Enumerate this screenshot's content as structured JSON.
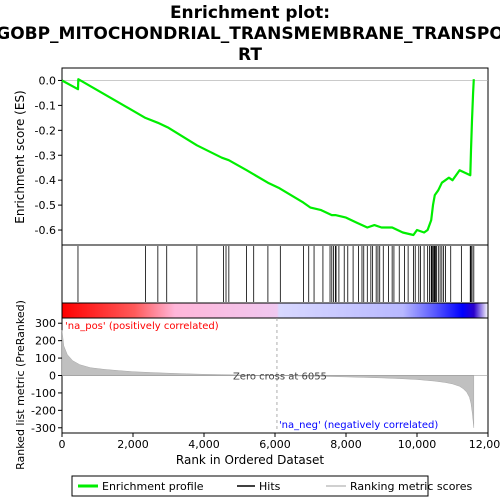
{
  "chart_data": {
    "type": "line",
    "title_line1": "Enrichment plot:",
    "title_line2": "GOBP_MITOCHONDRIAL_TRANSMEMBRANE_TRANSPO",
    "title_line3": "RT",
    "xlabel": "Rank in Ordered Dataset",
    "ylabel_top": "Enrichment score (ES)",
    "ylabel_bottom": "Ranked list metric (PreRanked)",
    "xlim": [
      0,
      12000
    ],
    "x_ticks": [
      0,
      2000,
      4000,
      6000,
      8000,
      10000,
      12000
    ],
    "x_tick_labels": [
      "0",
      "2,000",
      "4,000",
      "6,000",
      "8,000",
      "10,000",
      "12,000"
    ],
    "es_ylim": [
      -0.66,
      0.05
    ],
    "es_ticks": [
      0.0,
      -0.1,
      -0.2,
      -0.3,
      -0.4,
      -0.5,
      -0.6
    ],
    "es_tick_labels": [
      "0.0",
      "-0.1",
      "-0.2",
      "-0.3",
      "-0.4",
      "-0.5",
      "-0.6"
    ],
    "metric_ylim": [
      -330,
      330
    ],
    "metric_ticks": [
      300,
      200,
      100,
      0,
      -100,
      -200,
      -300
    ],
    "metric_tick_labels": [
      "300",
      "200",
      "100",
      "0",
      "-100",
      "-200",
      "-300"
    ],
    "enrichment_profile": {
      "name": "Enrichment profile",
      "color": "#00ee00",
      "x": [
        0,
        450,
        460,
        2350,
        2700,
        3000,
        3800,
        4500,
        4700,
        5200,
        5800,
        6100,
        6800,
        7000,
        7300,
        7600,
        7700,
        8000,
        8300,
        8600,
        8800,
        9000,
        9300,
        9600,
        9900,
        10000,
        10200,
        10300,
        10400,
        10450,
        10500,
        10600,
        10700,
        10800,
        10900,
        11000,
        11200,
        11500,
        11520,
        11550,
        11580,
        11600
      ],
      "y": [
        0.0,
        -0.035,
        0.005,
        -0.15,
        -0.17,
        -0.19,
        -0.26,
        -0.31,
        -0.32,
        -0.36,
        -0.41,
        -0.43,
        -0.49,
        -0.51,
        -0.52,
        -0.54,
        -0.54,
        -0.55,
        -0.57,
        -0.59,
        -0.58,
        -0.59,
        -0.59,
        -0.61,
        -0.62,
        -0.6,
        -0.61,
        -0.6,
        -0.56,
        -0.5,
        -0.46,
        -0.44,
        -0.41,
        -0.4,
        -0.39,
        -0.4,
        -0.36,
        -0.38,
        -0.28,
        -0.16,
        -0.05,
        0.005
      ]
    },
    "hits": {
      "name": "Hits",
      "color": "#000000",
      "positions": [
        450,
        2350,
        2700,
        2950,
        3800,
        4550,
        4620,
        4700,
        5200,
        5400,
        5800,
        6150,
        6800,
        6950,
        7100,
        7350,
        7550,
        7600,
        7650,
        7700,
        7720,
        7800,
        7950,
        8050,
        8200,
        8350,
        8450,
        8500,
        8600,
        8700,
        8750,
        8850,
        8900,
        8950,
        9050,
        9200,
        9300,
        9350,
        9500,
        9650,
        9750,
        9900,
        9950,
        10050,
        10100,
        10200,
        10300,
        10350,
        10400,
        10420,
        10450,
        10480,
        10500,
        10520,
        10550,
        10600,
        10650,
        10700,
        10750,
        10800,
        10950,
        11250,
        11500,
        11520,
        11550,
        11600
      ]
    },
    "ranked_metric": {
      "name": "Ranking metric scores",
      "color": "#c0c0c0",
      "x": [
        0,
        50,
        150,
        300,
        500,
        800,
        1200,
        1600,
        2000,
        2500,
        3000,
        3500,
        4000,
        4500,
        5000,
        5500,
        6055,
        6500,
        7000,
        7500,
        8000,
        8500,
        9000,
        9500,
        10000,
        10500,
        10800,
        11000,
        11200,
        11300,
        11400,
        11480,
        11520,
        11560,
        11600
      ],
      "y": [
        260,
        170,
        120,
        85,
        62,
        45,
        35,
        28,
        22,
        17,
        13,
        10,
        7,
        5,
        3,
        1,
        0,
        -2,
        -4,
        -6,
        -8,
        -11,
        -14,
        -18,
        -23,
        -32,
        -40,
        -48,
        -62,
        -75,
        -95,
        -125,
        -160,
        -220,
        -300
      ]
    },
    "annotations": {
      "pos_label": "'na_pos' (positively correlated)",
      "neg_label": "'na_neg' (negatively correlated)",
      "zero_cross": "Zero cross at 6055",
      "zero_cross_x": 6055
    },
    "legend": {
      "placement": "bottom",
      "items": [
        {
          "label": "Enrichment profile",
          "color": "#00ee00"
        },
        {
          "label": "Hits",
          "color": "#000000"
        },
        {
          "label": "Ranking metric scores",
          "color": "#c0c0c0"
        }
      ]
    },
    "colors": {
      "pos_red": "#ff0000",
      "pale_pink": "#ffb6d9",
      "pale_lavender": "#d8d8ff",
      "neg_blue": "#0000ff",
      "zero_line": "#999999"
    }
  }
}
